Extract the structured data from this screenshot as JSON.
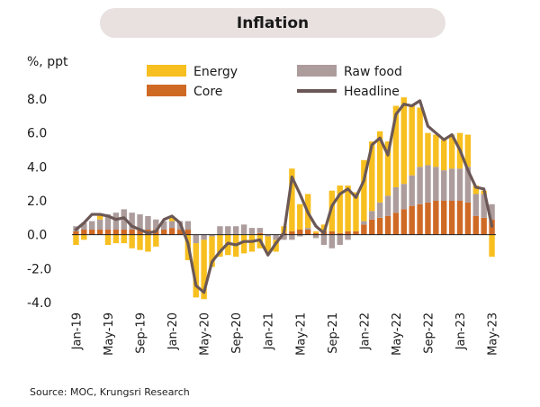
{
  "title": "Inflation",
  "unit_label": "%, ppt",
  "source": "Source: MOC, Krungsri Research",
  "colors": {
    "energy": "#f7bf1f",
    "raw_food": "#ad9c9c",
    "core": "#cf6a25",
    "headline": "#6b5856",
    "title_bg": "#e8e1df"
  },
  "chart_data": {
    "type": "bar",
    "stacked": true,
    "ylim": [
      -4.0,
      8.0
    ],
    "yticks": [
      "8.0",
      "6.0",
      "4.0",
      "2.0",
      "0.0",
      "-2.0",
      "-4.0"
    ],
    "ytick_values": [
      8,
      6,
      4,
      2,
      0,
      -2,
      -4
    ],
    "categories": [
      "Jan-19",
      "Feb-19",
      "Mar-19",
      "Apr-19",
      "May-19",
      "Jun-19",
      "Jul-19",
      "Aug-19",
      "Sep-19",
      "Oct-19",
      "Nov-19",
      "Dec-19",
      "Jan-20",
      "Feb-20",
      "Mar-20",
      "Apr-20",
      "May-20",
      "Jun-20",
      "Jul-20",
      "Aug-20",
      "Sep-20",
      "Oct-20",
      "Nov-20",
      "Dec-20",
      "Jan-21",
      "Feb-21",
      "Mar-21",
      "Apr-21",
      "May-21",
      "Jun-21",
      "Jul-21",
      "Aug-21",
      "Sep-21",
      "Oct-21",
      "Nov-21",
      "Dec-21",
      "Jan-22",
      "Feb-22",
      "Mar-22",
      "Apr-22",
      "May-22",
      "Jun-22",
      "Jul-22",
      "Aug-22",
      "Sep-22",
      "Oct-22",
      "Nov-22",
      "Dec-22",
      "Jan-23",
      "Feb-23",
      "Mar-23",
      "Apr-23",
      "May-23"
    ],
    "x_tick_labels": [
      "Jan-19",
      "May-19",
      "Sep-19",
      "Jan-20",
      "May-20",
      "Sep-20",
      "Jan-21",
      "May-21",
      "Sep-21",
      "Jan-22",
      "May-22",
      "Sep-22",
      "Jan-23",
      "May-23"
    ],
    "legend": [
      "Energy",
      "Raw food",
      "Core",
      "Headline"
    ],
    "series": [
      {
        "name": "Core",
        "type": "bar",
        "values": [
          0.2,
          0.3,
          0.3,
          0.3,
          0.3,
          0.3,
          0.3,
          0.3,
          0.3,
          0.3,
          0.3,
          0.3,
          0.4,
          0.3,
          0.3,
          0.0,
          0.0,
          0.0,
          0.0,
          0.0,
          0.0,
          0.0,
          0.0,
          0.1,
          0.0,
          0.0,
          0.1,
          0.2,
          0.3,
          0.3,
          0.1,
          0.2,
          0.2,
          0.1,
          0.2,
          0.2,
          0.6,
          0.9,
          1.0,
          1.1,
          1.3,
          1.5,
          1.7,
          1.8,
          1.9,
          2.0,
          2.0,
          2.0,
          2.0,
          1.9,
          1.1,
          1.0,
          0.9
        ]
      },
      {
        "name": "Raw food",
        "type": "bar",
        "values": [
          0.3,
          0.4,
          0.5,
          0.6,
          0.9,
          1.0,
          1.2,
          1.0,
          0.9,
          0.8,
          0.6,
          0.5,
          0.4,
          0.5,
          0.5,
          -0.5,
          -0.3,
          -0.1,
          0.5,
          0.5,
          0.5,
          0.6,
          0.4,
          0.3,
          -0.1,
          -0.3,
          -0.3,
          -0.3,
          -0.1,
          0.1,
          -0.2,
          -0.6,
          -0.8,
          -0.6,
          -0.3,
          0.0,
          0.2,
          0.5,
          0.9,
          1.2,
          1.5,
          1.5,
          1.8,
          2.2,
          2.2,
          2.0,
          1.8,
          1.9,
          1.9,
          2.1,
          1.3,
          1.4,
          0.9
        ]
      },
      {
        "name": "Energy",
        "type": "bar",
        "values": [
          -0.6,
          -0.3,
          0.0,
          0.3,
          -0.6,
          -0.5,
          -0.5,
          -0.8,
          -0.9,
          -1.0,
          -0.7,
          0.0,
          0.2,
          0.0,
          -1.5,
          -3.2,
          -3.5,
          -1.8,
          -1.3,
          -1.2,
          -1.3,
          -1.1,
          -1.0,
          -0.8,
          -0.9,
          -0.7,
          0.4,
          3.7,
          1.5,
          2.0,
          0.1,
          0.4,
          2.4,
          2.8,
          2.7,
          2.3,
          3.6,
          4.1,
          4.2,
          3.2,
          4.8,
          5.1,
          4.1,
          3.5,
          1.9,
          1.9,
          1.8,
          2.0,
          2.1,
          1.9,
          0.5,
          0.2,
          -1.3
        ]
      },
      {
        "name": "Headline",
        "type": "line",
        "values": [
          0.3,
          0.7,
          1.2,
          1.2,
          1.1,
          0.9,
          1.0,
          0.5,
          0.3,
          0.1,
          0.2,
          0.9,
          1.1,
          0.7,
          -0.5,
          -3.0,
          -3.4,
          -1.6,
          -1.0,
          -0.5,
          -0.6,
          -0.4,
          -0.4,
          -0.3,
          -1.2,
          -0.5,
          0.1,
          3.4,
          2.4,
          1.3,
          0.5,
          0.1,
          1.7,
          2.4,
          2.7,
          2.2,
          3.2,
          5.3,
          5.7,
          4.7,
          7.1,
          7.7,
          7.6,
          7.9,
          6.4,
          6.0,
          5.6,
          5.9,
          5.0,
          3.8,
          2.8,
          2.7,
          0.5
        ]
      }
    ]
  }
}
